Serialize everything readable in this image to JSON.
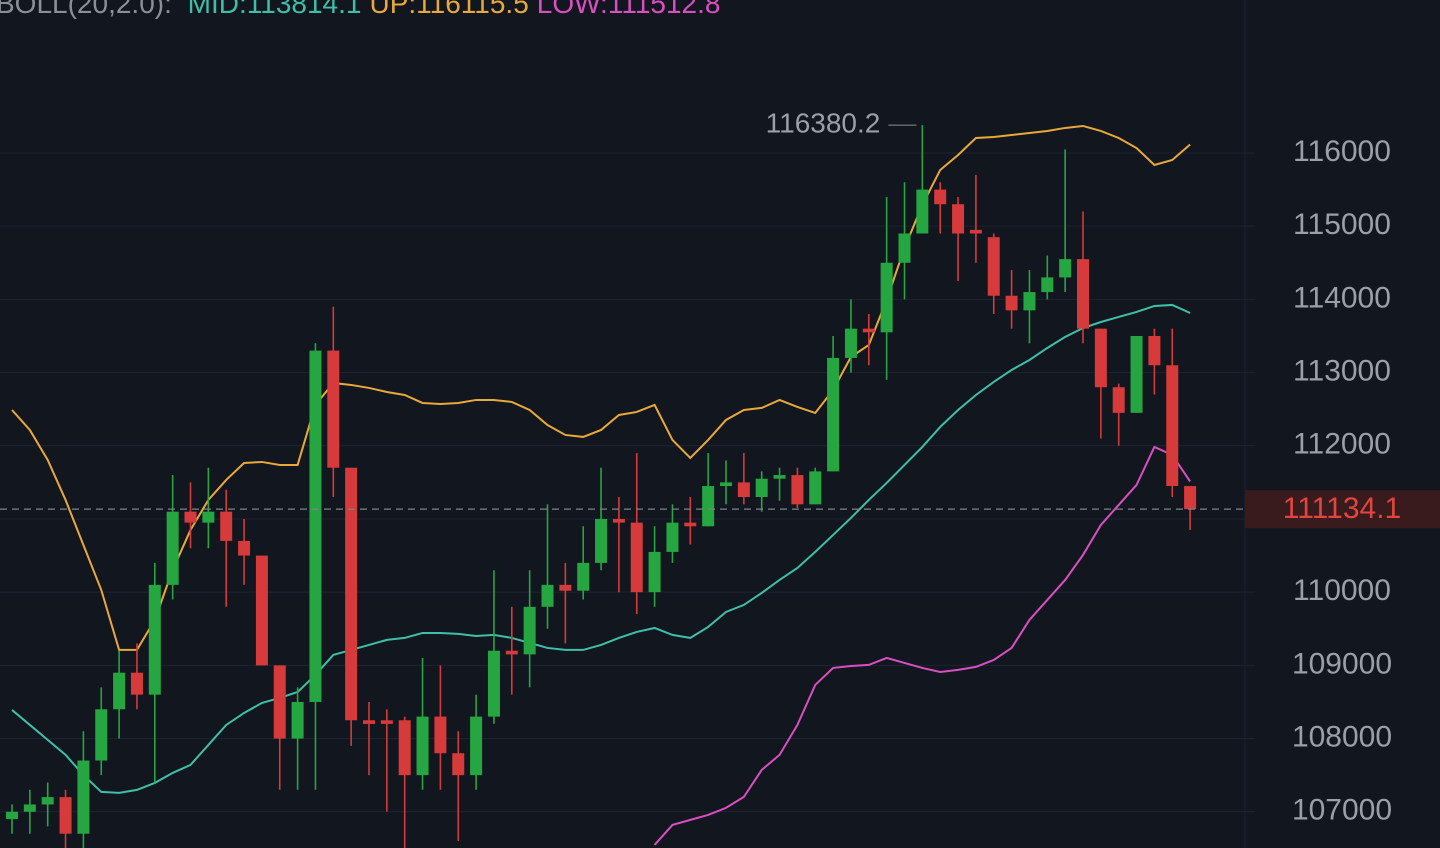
{
  "chart_data": {
    "type": "candlestick",
    "indicator": "BOLL(20,2.0):",
    "ylim": [
      106505,
      118090
    ],
    "yticks": [
      107000,
      108000,
      109000,
      110000,
      111000,
      112000,
      113000,
      114000,
      115000,
      116000
    ],
    "grid": true,
    "up_color": "#26a641",
    "down_color": "#d63a3a",
    "open": [
      106900,
      107000,
      107100,
      107200,
      106700,
      107700,
      108400,
      108900,
      108600,
      110100,
      111100,
      110950,
      111100,
      110700,
      110500,
      109000,
      108000,
      108500,
      113300,
      111700,
      108250,
      108250,
      108250,
      107500,
      108300,
      107800,
      107500,
      108300,
      109200,
      109150,
      109800,
      110100,
      110020,
      110400,
      111000,
      110950,
      110000,
      110550,
      110950,
      110900,
      111450,
      111500,
      111300,
      111550,
      111600,
      111200,
      111650,
      113200,
      113600,
      113550,
      114500,
      114900,
      115500,
      115300,
      114950,
      114850,
      114050,
      113850,
      114100,
      114300,
      114550,
      113600,
      112800,
      112450,
      113500,
      113100,
      111450
    ],
    "high": [
      107100,
      107300,
      107400,
      107300,
      108100,
      108700,
      109200,
      109300,
      110400,
      111600,
      111500,
      111700,
      111400,
      111000,
      110500,
      109000,
      108700,
      113400,
      113900,
      111700,
      108500,
      108400,
      108300,
      109100,
      109000,
      108100,
      108600,
      110300,
      109800,
      110300,
      111200,
      110400,
      110900,
      111700,
      111300,
      111900,
      110900,
      111200,
      111300,
      111900,
      111800,
      111900,
      111650,
      111700,
      111700,
      111700,
      113500,
      114000,
      113800,
      115400,
      115600,
      116380.2,
      115600,
      115400,
      115700,
      114900,
      114400,
      114400,
      114600,
      116050,
      115200,
      113600,
      112850,
      113500,
      113600,
      113600,
      111450
    ],
    "low": [
      106700,
      106700,
      106800,
      106500,
      106500,
      107500,
      108000,
      108400,
      107400,
      109900,
      110600,
      110600,
      109800,
      110100,
      109000,
      107300,
      107300,
      107300,
      111300,
      107900,
      107500,
      107000,
      106500,
      107300,
      107300,
      106600,
      107300,
      108200,
      108600,
      108700,
      109500,
      109300,
      109900,
      110300,
      110000,
      109700,
      109800,
      110400,
      110650,
      110900,
      111200,
      111200,
      111100,
      111250,
      111150,
      111200,
      111650,
      113000,
      113100,
      112900,
      114000,
      114900,
      114900,
      114250,
      114500,
      113800,
      113600,
      113400,
      114000,
      114100,
      113400,
      112100,
      112000,
      112450,
      112700,
      111300,
      110850
    ],
    "close": [
      107000,
      107100,
      107200,
      106700,
      107700,
      108400,
      108900,
      108600,
      110100,
      111100,
      110950,
      111100,
      110700,
      110500,
      109000,
      108000,
      108500,
      113300,
      111700,
      108250,
      108200,
      108200,
      107500,
      108300,
      107800,
      107500,
      108300,
      109200,
      109150,
      109800,
      110100,
      110020,
      110400,
      111000,
      110950,
      110000,
      110550,
      110950,
      110900,
      111450,
      111500,
      111300,
      111550,
      111600,
      111200,
      111650,
      113200,
      113600,
      113550,
      114500,
      114900,
      115500,
      115300,
      114900,
      114900,
      114050,
      113850,
      114100,
      114300,
      114550,
      113600,
      112800,
      112450,
      113500,
      113100,
      111450,
      111134.1
    ],
    "series": [
      {
        "name": "MID:113814.1",
        "color": "#3fbfa8",
        "values": [
          108391,
          108186,
          107982,
          107777,
          107503,
          107271,
          107258,
          107299,
          107394,
          107531,
          107640,
          107913,
          108186,
          108350,
          108487,
          108555,
          108637,
          108869,
          109143,
          109211,
          109279,
          109348,
          109375,
          109443,
          109443,
          109430,
          109402,
          109416,
          109375,
          109307,
          109238,
          109211,
          109211,
          109279,
          109375,
          109457,
          109511,
          109416,
          109375,
          109525,
          109730,
          109826,
          109990,
          110167,
          110331,
          110550,
          110782,
          111014,
          111260,
          111492,
          111738,
          111984,
          112257,
          112489,
          112694,
          112872,
          113036,
          113172,
          113336,
          113487,
          113609,
          113691,
          113760,
          113828,
          113910,
          113924,
          113814.1
        ]
      },
      {
        "name": "UP:116115.5",
        "color": "#e8a93a",
        "values": [
          112489,
          112216,
          111806,
          111260,
          110645,
          110031,
          109211,
          109211,
          109621,
          110304,
          110850,
          111260,
          111533,
          111765,
          111779,
          111738,
          111738,
          112558,
          112858,
          112831,
          112790,
          112735,
          112694,
          112585,
          112571,
          112585,
          112626,
          112626,
          112599,
          112489,
          112284,
          112148,
          112121,
          112216,
          112421,
          112462,
          112558,
          112080,
          111834,
          112080,
          112353,
          112489,
          112517,
          112626,
          112530,
          112448,
          112763,
          113213,
          113377,
          113992,
          114702,
          115290,
          115768,
          115973,
          116205,
          116219,
          116246,
          116273,
          116301,
          116342,
          116369,
          116301,
          116205,
          116068,
          115836,
          115904,
          116115.5
        ]
      },
      {
        "name": "LOW:111512.8",
        "color": "#d94fc1",
        "values": [
          null,
          null,
          null,
          null,
          null,
          null,
          null,
          null,
          null,
          null,
          null,
          null,
          null,
          null,
          null,
          null,
          null,
          null,
          null,
          null,
          null,
          null,
          null,
          null,
          null,
          null,
          null,
          null,
          null,
          null,
          null,
          null,
          null,
          null,
          null,
          null,
          106547,
          106820,
          106889,
          106957,
          107053,
          107203,
          107572,
          107777,
          108186,
          108733,
          108965,
          108992,
          109006,
          109102,
          109033,
          108965,
          108910,
          108938,
          108979,
          109074,
          109238,
          109621,
          109894,
          110167,
          110509,
          110918,
          111192,
          111465,
          111984,
          111875,
          111512.8
        ]
      }
    ],
    "high_annotation": 116380.2,
    "last_price": 111134.1
  }
}
